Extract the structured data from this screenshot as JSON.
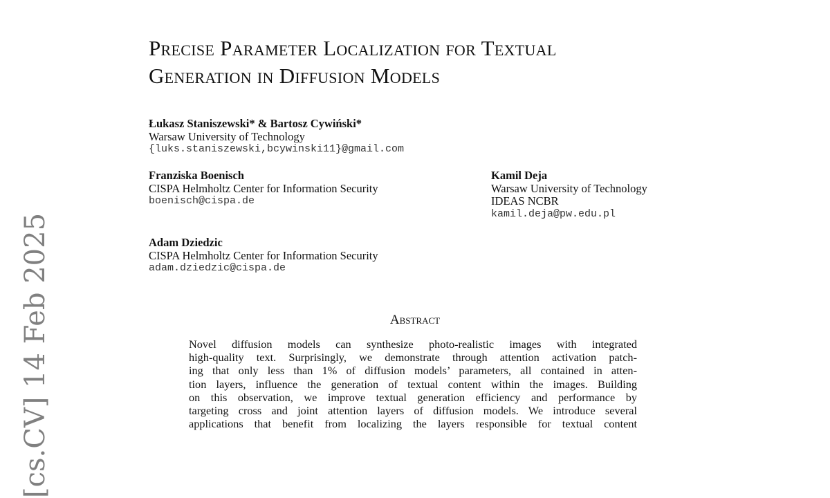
{
  "sidebar_stamp": "[cs.CV]  14 Feb 2025",
  "title": {
    "line1": "Precise Parameter Localization for Textual",
    "line2": "Generation in Diffusion Models"
  },
  "authors": [
    {
      "name": "Łukasz Staniszewski* & Bartosz Cywiński*",
      "affiliations": [
        "Warsaw University of Technology"
      ],
      "email": "{luks.staniszewski,bcywinski11}@gmail.com"
    },
    {
      "name": "Franziska Boenisch",
      "affiliations": [
        "CISPA Helmholtz Center for Information Security"
      ],
      "email": "boenisch@cispa.de"
    },
    {
      "name": "Kamil Deja",
      "affiliations": [
        "Warsaw University of Technology",
        "IDEAS NCBR"
      ],
      "email": "kamil.deja@pw.edu.pl"
    },
    {
      "name": "Adam Dziedzic",
      "affiliations": [
        "CISPA Helmholtz Center for Information Security"
      ],
      "email": "adam.dziedzic@cispa.de"
    }
  ],
  "abstract": {
    "heading": "Abstract",
    "lines": [
      "Novel diffusion models can synthesize photo-realistic images with integrated",
      "high-quality text. Surprisingly, we demonstrate through attention activation patch-",
      "ing that only less than 1% of diffusion models’ parameters, all contained in atten-",
      "tion layers, influence the generation of textual content within the images. Building",
      "on this observation, we improve textual generation efficiency and performance by",
      "targeting cross and joint attention layers of diffusion models. We introduce several",
      "applications that benefit from localizing the layers responsible for textual content"
    ]
  }
}
